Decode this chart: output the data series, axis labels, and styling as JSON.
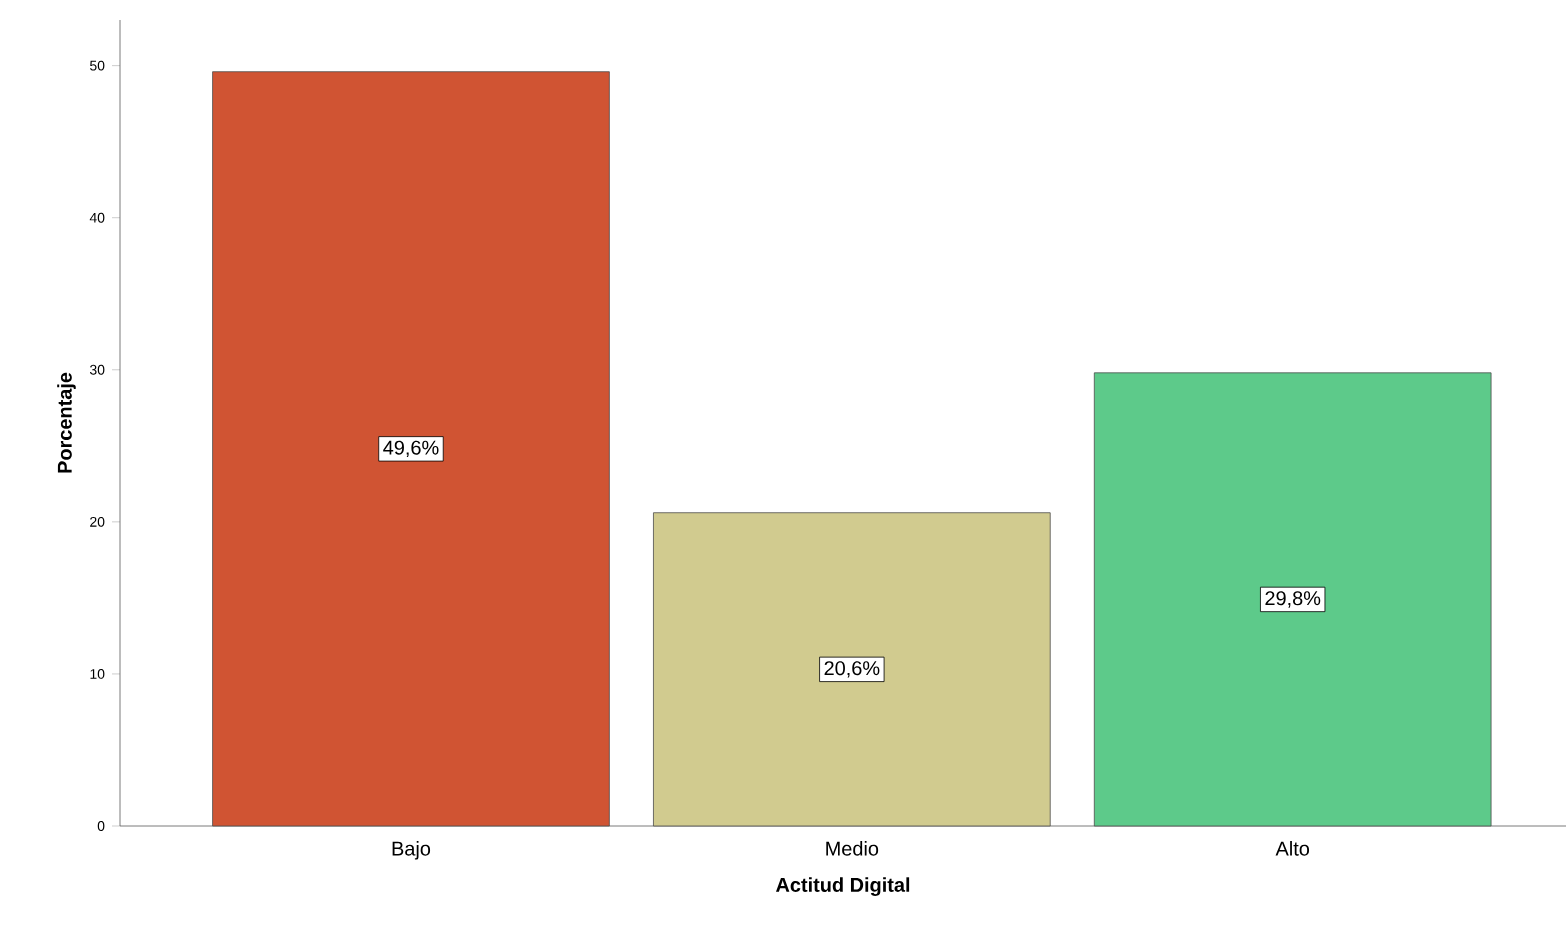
{
  "chart_data": {
    "type": "bar",
    "xlabel": "Actitud Digital",
    "ylabel": "Porcentaje",
    "categories": [
      "Bajo",
      "Medio",
      "Alto"
    ],
    "values": [
      49.6,
      20.6,
      29.8
    ],
    "value_labels": [
      "49,6%",
      "20,6%",
      "29,8%"
    ],
    "colors": [
      "#d05433",
      "#d1cb8f",
      "#5dca8a"
    ],
    "ylim": [
      0,
      53
    ],
    "yticks": [
      0,
      10,
      20,
      30,
      40,
      50
    ]
  }
}
